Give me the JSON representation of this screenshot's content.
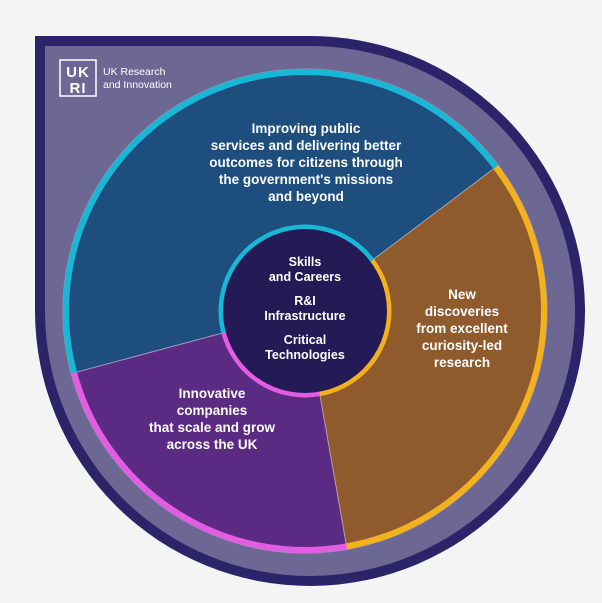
{
  "org": {
    "logo_lines": [
      "UK",
      "RI"
    ],
    "name_lines": [
      "UK Research",
      "and Innovation"
    ]
  },
  "segments": [
    {
      "key": "public-services",
      "lines": [
        "Improving public",
        "services and delivering better",
        "outcomes for citizens through",
        "the government's missions",
        "and beyond"
      ],
      "fill": "#1d4e7e",
      "rim": "#19b7d6"
    },
    {
      "key": "discoveries",
      "lines": [
        "New",
        "discoveries",
        "from excellent",
        "curiosity-led",
        "research"
      ],
      "fill": "#8f5a2c",
      "rim": "#f3b21d"
    },
    {
      "key": "companies",
      "lines": [
        "Innovative",
        "companies",
        "that scale and grow",
        "across the UK"
      ],
      "fill": "#5b2a82",
      "rim": "#e35ce4"
    }
  ],
  "core": {
    "lines": [
      "Skills",
      "and Careers",
      "R&I",
      "Infrastructure",
      "Critical",
      "Technologies"
    ],
    "fill": "#241b56"
  },
  "colors": {
    "frame_outer": "#2c2468",
    "frame_inner": "#6d6893",
    "page": "#f4f4f5"
  }
}
